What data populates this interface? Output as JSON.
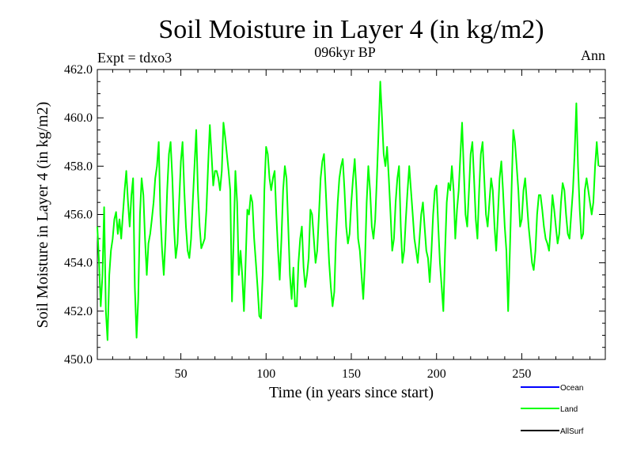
{
  "chart_data": {
    "type": "line",
    "title": "Soil Moisture in Layer 4 (in kg/m2)",
    "subtitle_left": "Expt = tdxo3",
    "subtitle_center": "096kyr BP",
    "subtitle_right": "Ann",
    "xlabel": "Time (in years since start)",
    "ylabel": "Soil Moisture in Layer 4 (in kg/m2)",
    "xlim": [
      1,
      299
    ],
    "ylim": [
      450.0,
      462.0
    ],
    "xticks": [
      50,
      100,
      150,
      200,
      250
    ],
    "yticks": [
      "450.0",
      "452.0",
      "454.0",
      "456.0",
      "458.0",
      "460.0",
      "462.0"
    ],
    "legend": [
      {
        "name": "Ocean",
        "color": "#0000ff"
      },
      {
        "name": "Land",
        "color": "#00ff00"
      },
      {
        "name": "AllSurf",
        "color": "#000000"
      }
    ],
    "series": [
      {
        "name": "Land",
        "color": "#00ff00",
        "x_start": 1,
        "values": [
          455.5,
          454.0,
          452.2,
          453.5,
          456.3,
          452.0,
          450.8,
          453.5,
          454.5,
          455.0,
          455.8,
          456.1,
          455.2,
          455.8,
          455.0,
          456.0,
          457.0,
          457.8,
          456.5,
          455.5,
          456.8,
          457.5,
          453.0,
          450.9,
          452.5,
          456.0,
          457.5,
          456.8,
          455.0,
          453.5,
          454.8,
          455.2,
          455.8,
          456.5,
          457.5,
          458.0,
          459.0,
          456.0,
          454.5,
          453.5,
          455.0,
          457.0,
          458.5,
          459.0,
          457.5,
          455.5,
          454.2,
          454.8,
          456.5,
          458.2,
          459.0,
          457.0,
          455.5,
          454.5,
          454.2,
          455.0,
          456.5,
          458.0,
          459.5,
          457.0,
          455.5,
          454.6,
          454.8,
          455.0,
          456.2,
          458.0,
          459.7,
          458.5,
          457.2,
          457.8,
          457.8,
          457.5,
          457.0,
          457.8,
          459.8,
          459.2,
          458.5,
          457.8,
          457.0,
          452.4,
          455.0,
          457.8,
          456.5,
          453.5,
          454.5,
          453.5,
          452.0,
          454.0,
          456.2,
          456.0,
          456.8,
          456.5,
          455.0,
          454.0,
          453.0,
          451.8,
          451.7,
          453.5,
          457.0,
          458.8,
          458.5,
          457.5,
          457.0,
          457.5,
          457.8,
          456.0,
          454.5,
          453.3,
          455.0,
          457.0,
          458.0,
          457.5,
          455.5,
          453.5,
          452.5,
          453.8,
          452.2,
          452.2,
          454.0,
          455.0,
          455.5,
          453.8,
          453.0,
          453.5,
          454.2,
          456.2,
          456.0,
          455.0,
          454.0,
          454.5,
          456.0,
          457.5,
          458.2,
          458.5,
          457.0,
          455.5,
          454.0,
          453.0,
          452.2,
          452.8,
          455.0,
          456.5,
          457.5,
          458.0,
          458.3,
          457.0,
          455.5,
          454.8,
          455.2,
          456.5,
          457.5,
          458.3,
          457.0,
          455.0,
          454.5,
          453.5,
          452.5,
          454.0,
          456.5,
          458.0,
          457.0,
          455.5,
          455.0,
          455.8,
          457.5,
          459.5,
          461.5,
          460.0,
          458.5,
          458.0,
          458.8,
          457.5,
          456.0,
          454.5,
          455.0,
          456.5,
          457.5,
          458.0,
          455.5,
          454.0,
          454.5,
          455.8,
          457.0,
          458.0,
          457.0,
          456.0,
          455.0,
          454.5,
          454.0,
          455.0,
          456.0,
          456.5,
          455.5,
          454.5,
          454.2,
          453.2,
          454.5,
          456.0,
          457.0,
          457.2,
          455.5,
          454.0,
          453.0,
          452.0,
          454.5,
          456.5,
          457.3,
          457.0,
          458.0,
          457.0,
          455.0,
          456.2,
          457.0,
          458.5,
          459.8,
          457.8,
          456.0,
          455.5,
          457.0,
          458.5,
          459.0,
          457.5,
          455.8,
          455.0,
          457.0,
          458.5,
          459.0,
          457.5,
          456.0,
          455.5,
          456.5,
          457.5,
          457.0,
          455.5,
          454.5,
          456.0,
          457.5,
          458.2,
          457.0,
          455.5,
          454.5,
          452.0,
          454.5,
          457.0,
          459.5,
          459.0,
          458.0,
          457.0,
          455.5,
          455.8,
          457.0,
          457.5,
          456.5,
          455.5,
          454.8,
          454.0,
          453.7,
          454.5,
          456.0,
          456.8,
          456.8,
          456.2,
          455.5,
          455.0,
          454.8,
          454.5,
          455.5,
          456.8,
          456.2,
          455.5,
          454.8,
          455.2,
          456.5,
          457.3,
          457.0,
          456.0,
          455.2,
          455.0,
          456.0,
          457.0,
          458.5,
          460.6,
          458.0,
          456.2,
          455.0,
          455.2,
          457.0,
          457.5,
          457.0,
          456.5,
          456.0,
          456.5,
          458.0,
          459.0,
          458.0
        ]
      }
    ]
  }
}
